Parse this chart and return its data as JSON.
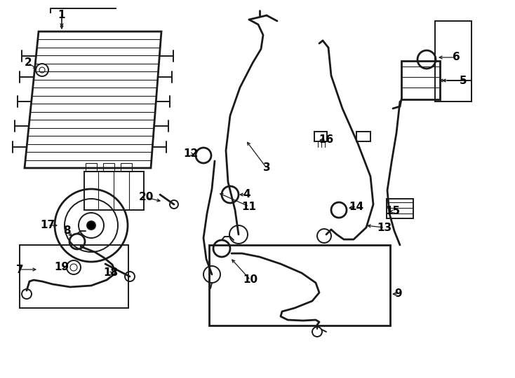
{
  "bg_color": "#ffffff",
  "line_color": "#1a1a1a",
  "lw_main": 1.4,
  "lw_thick": 2.0,
  "lw_thin": 0.8,
  "figsize": [
    7.34,
    5.4
  ],
  "dpi": 100
}
